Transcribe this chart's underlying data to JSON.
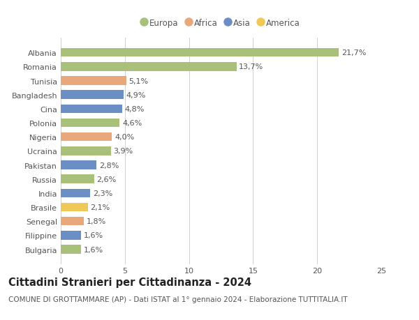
{
  "countries": [
    "Albania",
    "Romania",
    "Tunisia",
    "Bangladesh",
    "Cina",
    "Polonia",
    "Nigeria",
    "Ucraina",
    "Pakistan",
    "Russia",
    "India",
    "Brasile",
    "Senegal",
    "Filippine",
    "Bulgaria"
  ],
  "values": [
    21.7,
    13.7,
    5.1,
    4.9,
    4.8,
    4.6,
    4.0,
    3.9,
    2.8,
    2.6,
    2.3,
    2.1,
    1.8,
    1.6,
    1.6
  ],
  "continents": [
    "Europa",
    "Europa",
    "Africa",
    "Asia",
    "Asia",
    "Europa",
    "Africa",
    "Europa",
    "Asia",
    "Europa",
    "Asia",
    "America",
    "Africa",
    "Asia",
    "Europa"
  ],
  "colors": {
    "Europa": "#a8c07a",
    "Africa": "#e8a87c",
    "Asia": "#6b8ec4",
    "America": "#f0c85a"
  },
  "title": "Cittadini Stranieri per Cittadinanza - 2024",
  "subtitle": "COMUNE DI GROTTAMMARE (AP) - Dati ISTAT al 1° gennaio 2024 - Elaborazione TUTTITALIA.IT",
  "xlim": [
    0,
    25
  ],
  "xticks": [
    0,
    5,
    10,
    15,
    20,
    25
  ],
  "bg_color": "#ffffff",
  "grid_color": "#d0d0d0",
  "bar_height": 0.62,
  "label_fontsize": 8,
  "tick_fontsize": 8,
  "ytick_fontsize": 8,
  "title_fontsize": 10.5,
  "subtitle_fontsize": 7.5
}
